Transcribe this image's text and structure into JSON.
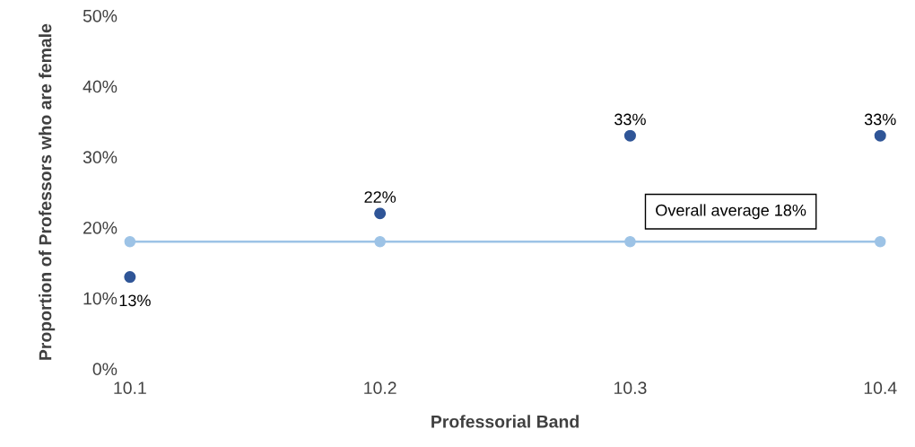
{
  "chart_data": {
    "type": "scatter",
    "xlabel": "Professorial Band",
    "ylabel": "Proportion of Professors who are female",
    "x": [
      10.1,
      10.2,
      10.3,
      10.4
    ],
    "series": [
      {
        "color": "#2f5597",
        "values": [
          13,
          22,
          33,
          33
        ],
        "value_labels": [
          "13%",
          "22%",
          "33%",
          "33%"
        ]
      },
      {
        "type": "line",
        "color": "#9dc3e6",
        "values": [
          18,
          18,
          18,
          18
        ]
      }
    ],
    "marker": "circle",
    "xlim": [
      10.1,
      10.4
    ],
    "xticks": [
      10.1,
      10.2,
      10.3,
      10.4
    ],
    "ylim": [
      0,
      50
    ],
    "yticks": [
      {
        "value": 0,
        "label": "0%"
      },
      {
        "value": 10,
        "label": "10%"
      },
      {
        "value": 20,
        "label": "20%"
      },
      {
        "value": 30,
        "label": "30%"
      },
      {
        "value": 40,
        "label": "40%"
      },
      {
        "value": 50,
        "label": "50%"
      }
    ],
    "annotations": [
      "Overall average 18%"
    ]
  }
}
